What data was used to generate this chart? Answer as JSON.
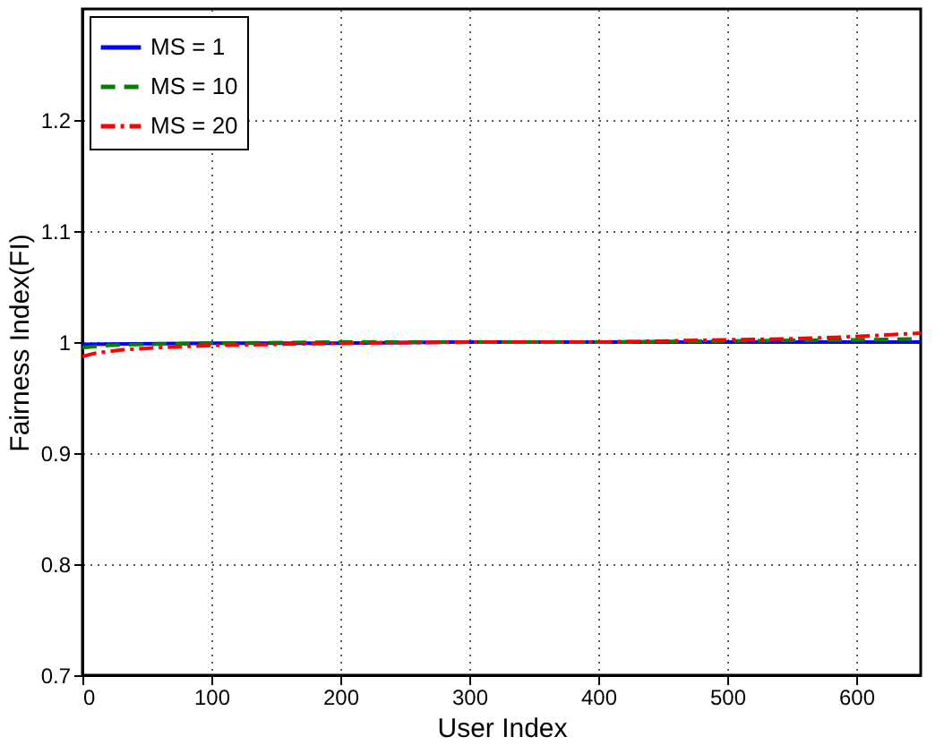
{
  "chart_data": {
    "type": "line",
    "xlabel": "User Index",
    "ylabel": "Fairness Index(FI)",
    "xlim": [
      0,
      650
    ],
    "ylim": [
      0.7,
      1.3
    ],
    "xticks": [
      0,
      100,
      200,
      300,
      400,
      500,
      600
    ],
    "yticks": [
      0.7,
      0.8,
      0.9,
      1,
      1.1,
      1.2
    ],
    "grid": true,
    "legend": "top left",
    "series": [
      {
        "name": "MS = 1",
        "color": "#0000ff",
        "line_style": "solid",
        "x": [
          0,
          100,
          200,
          300,
          400,
          500,
          600,
          650
        ],
        "values": [
          0.998,
          0.999,
          0.999,
          1.0,
          1.0,
          1.0,
          1.0,
          1.0
        ]
      },
      {
        "name": "MS = 10",
        "color": "#008000",
        "line_style": "dashed",
        "x": [
          0,
          20,
          50,
          100,
          200,
          300,
          400,
          500,
          600,
          650
        ],
        "values": [
          0.995,
          0.997,
          0.998,
          0.999,
          1.0,
          1.0,
          1.0,
          1.001,
          1.002,
          1.003
        ]
      },
      {
        "name": "MS = 20",
        "color": "#ff0000",
        "line_style": "dashdot",
        "x": [
          0,
          10,
          30,
          60,
          100,
          150,
          200,
          300,
          400,
          500,
          550,
          600,
          650
        ],
        "values": [
          0.987,
          0.99,
          0.993,
          0.995,
          0.997,
          0.998,
          0.999,
          1.0,
          1.0,
          1.002,
          1.003,
          1.005,
          1.008
        ]
      }
    ]
  }
}
